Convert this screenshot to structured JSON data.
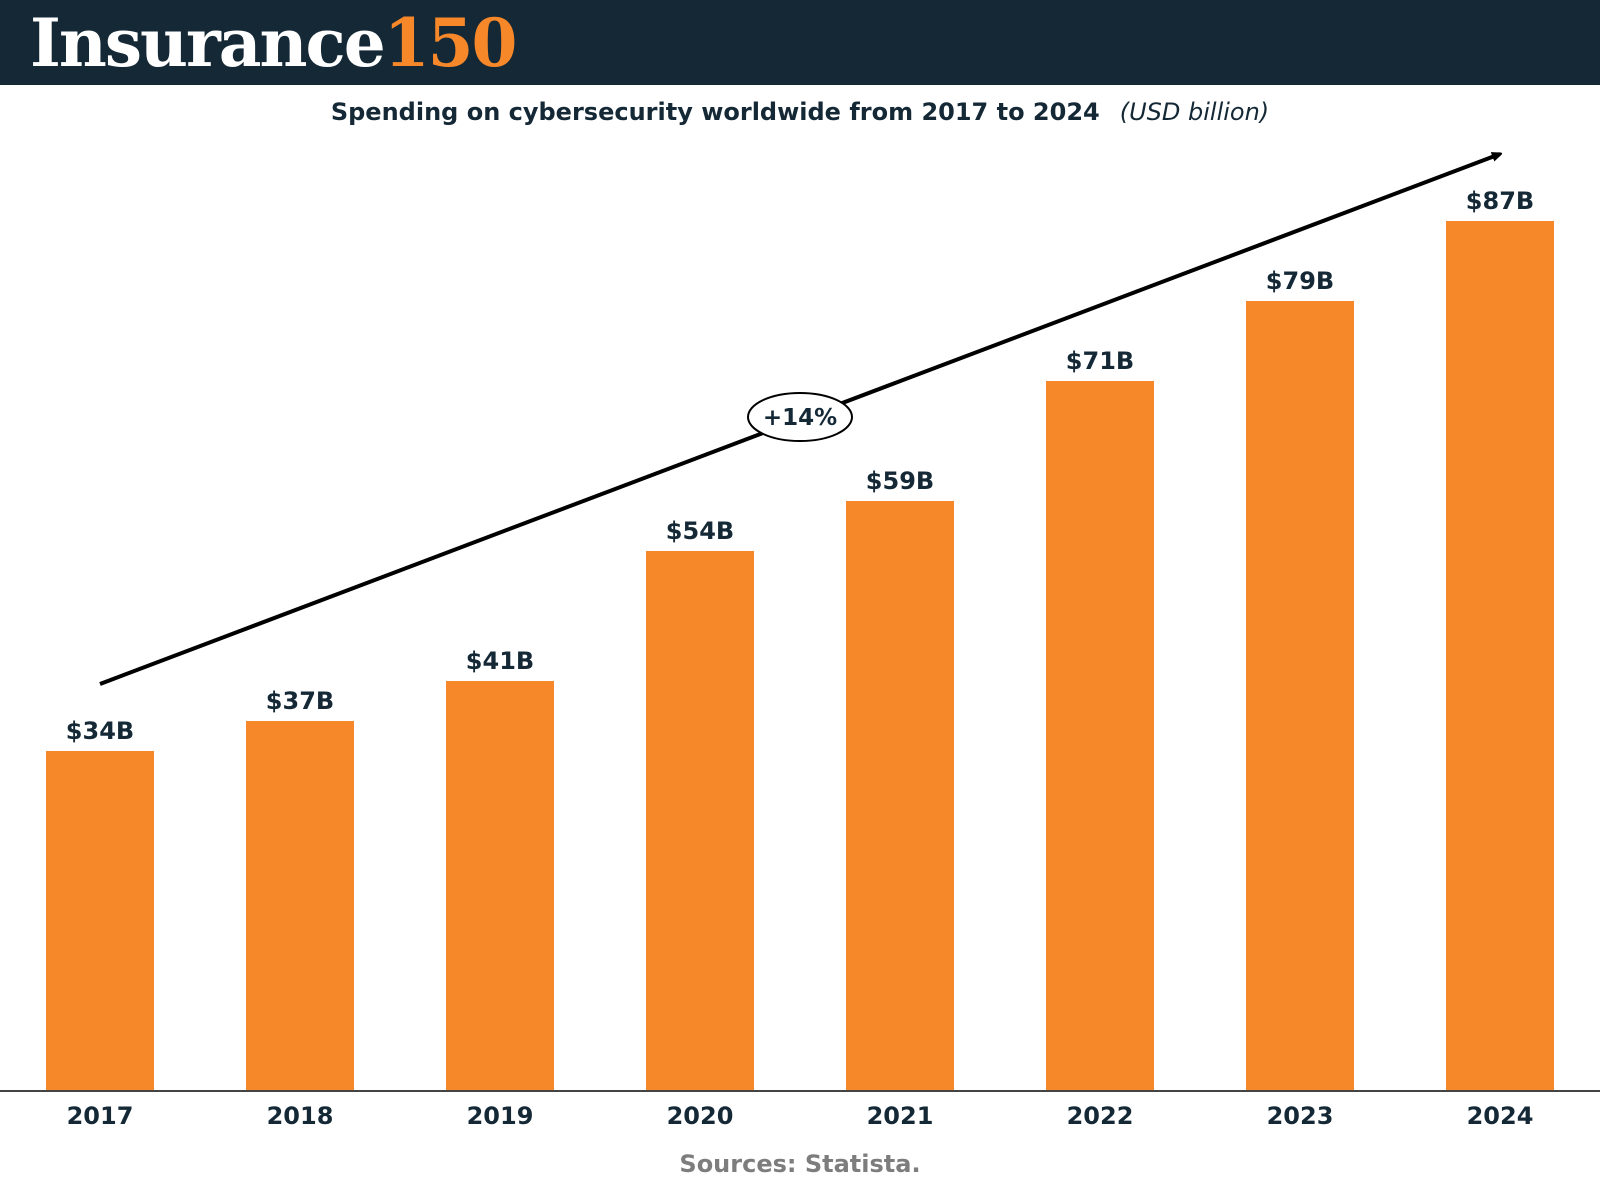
{
  "header": {
    "logo_text": "Insurance",
    "logo_number": "150",
    "logo_colors": {
      "background": "#142836",
      "text": "#ffffff",
      "number": "#F7882A"
    }
  },
  "chart_data": {
    "type": "bar",
    "title": "Spending on cybersecurity worldwide from 2017 to 2024",
    "subtitle": "(USD billion)",
    "categories": [
      "2017",
      "2018",
      "2019",
      "2020",
      "2021",
      "2022",
      "2023",
      "2024"
    ],
    "values": [
      34,
      37,
      41,
      54,
      59,
      71,
      79,
      87
    ],
    "data_labels": [
      "$34B",
      "$37B",
      "$41B",
      "$54B",
      "$59B",
      "$71B",
      "$79B",
      "$87B"
    ],
    "ylim": [
      0,
      87
    ],
    "grid": false,
    "legend": "none",
    "bar_color": "#F7882A",
    "annotation": {
      "type": "trend-arrow",
      "label": "+14%"
    }
  },
  "footer": {
    "source": "Sources: Statista."
  }
}
